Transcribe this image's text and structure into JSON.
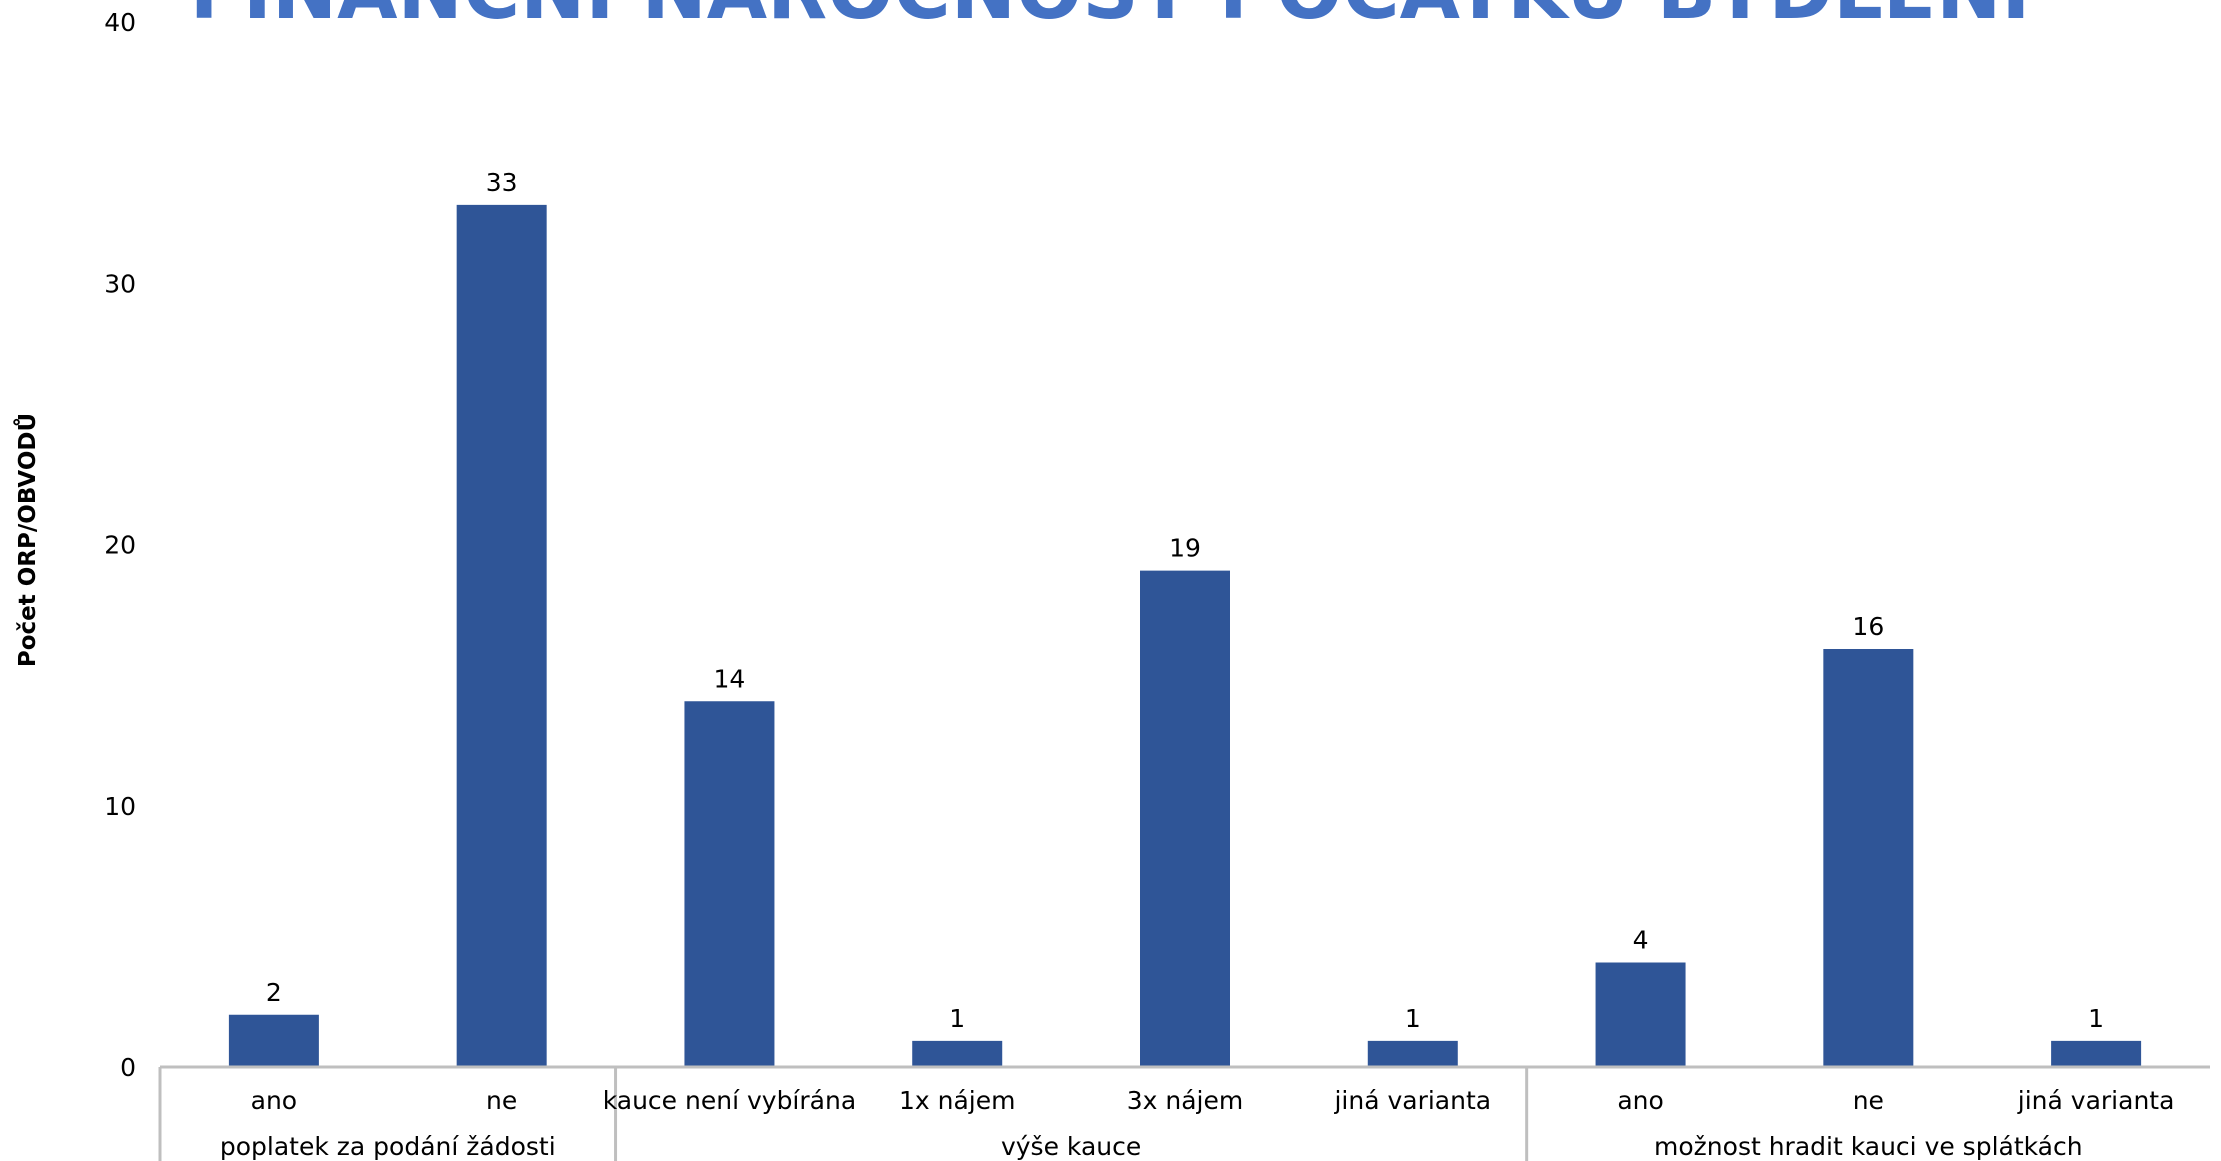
{
  "chart_data": {
    "type": "bar",
    "title": "FINANČNÍ NÁROČNOST POČÁTKU BYDLENÍ",
    "xlabel": "",
    "ylabel": "Počet ORP/OBVODŮ",
    "ylim": [
      0,
      40
    ],
    "yticks": [
      0,
      10,
      20,
      30,
      40
    ],
    "grid": false,
    "legend": "none",
    "groups": [
      {
        "label": "poplatek za podání žádosti",
        "categories": [
          "ano",
          "ne"
        ],
        "values": [
          2,
          33
        ]
      },
      {
        "label": "výše kauce",
        "categories": [
          "kauce není vybírána",
          "1x nájem",
          "3x nájem",
          "jiná varianta"
        ],
        "values": [
          14,
          1,
          19,
          1
        ]
      },
      {
        "label": "možnost hradit kauci ve splátkách",
        "categories": [
          "ano",
          "ne",
          "jiná varianta"
        ],
        "values": [
          4,
          16,
          1
        ]
      }
    ],
    "colors": {
      "bar": "#2F5597",
      "title": "#4472C4",
      "axis": "#BFBFBF"
    }
  }
}
